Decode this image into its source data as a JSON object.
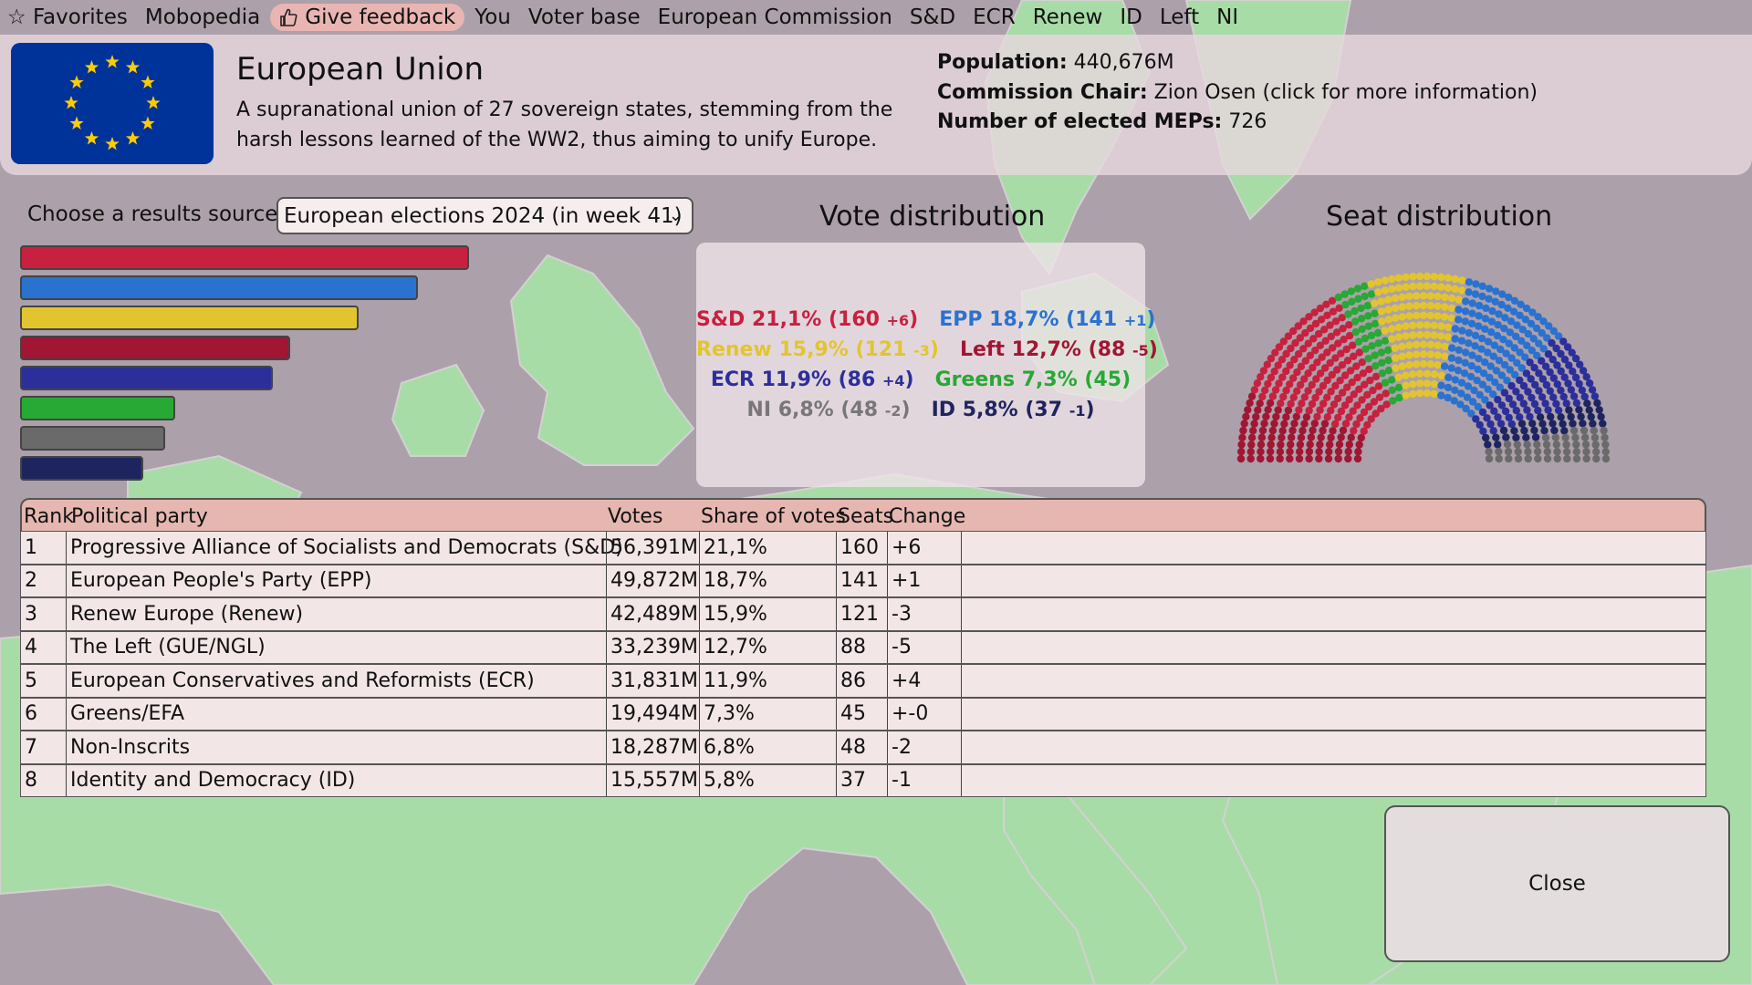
{
  "menu": {
    "favorites": "Favorites",
    "mobopedia": "Mobopedia",
    "feedback": "Give feedback",
    "you": "You",
    "voter_base": "Voter base",
    "commission": "European Commission",
    "sd": "S&D",
    "ecr": "ECR",
    "renew": "Renew",
    "id": "ID",
    "left": "Left",
    "ni": "NI"
  },
  "header": {
    "title": "European Union",
    "description": "A supranational union of 27 sovereign states, stemming from the harsh lessons learned of the WW2, thus aiming to unify Europe.",
    "population_label": "Population:",
    "population_value": "440,676M",
    "chair_label": "Commission Chair:",
    "chair_value": "Zion Osen (click for more information)",
    "meps_label": "Number of elected MEPs:",
    "meps_value": "726"
  },
  "source": {
    "label": "Choose a results source",
    "selected": "European elections 2024 (in week 41)"
  },
  "vote_distribution": {
    "title": "Vote distribution",
    "entries": [
      {
        "party": "S&D",
        "share": "21,1%",
        "seats": "160",
        "change": "+6",
        "color": "#c8203f"
      },
      {
        "party": "EPP",
        "share": "18,7%",
        "seats": "141",
        "change": "+1",
        "color": "#2a72cf"
      },
      {
        "party": "Renew",
        "share": "15,9%",
        "seats": "121",
        "change": "-3",
        "color": "#e2c52e"
      },
      {
        "party": "Left",
        "share": "12,7%",
        "seats": "88",
        "change": "-5",
        "color": "#a01633"
      },
      {
        "party": "ECR",
        "share": "11,9%",
        "seats": "86",
        "change": "+4",
        "color": "#2c2f9a"
      },
      {
        "party": "Greens",
        "share": "7,3%",
        "seats": "45",
        "change": "",
        "color": "#28a834"
      },
      {
        "party": "NI",
        "share": "6,8%",
        "seats": "48",
        "change": "-2",
        "color": "#777777"
      },
      {
        "party": "ID",
        "share": "5,8%",
        "seats": "37",
        "change": "-1",
        "color": "#1e255e"
      }
    ]
  },
  "seat_distribution": {
    "title": "Seat distribution"
  },
  "chart_data": {
    "type": "bar",
    "categories": [
      "S&D",
      "EPP",
      "Renew",
      "Left",
      "ECR",
      "Greens",
      "NI",
      "ID"
    ],
    "values": [
      21.1,
      18.7,
      15.9,
      12.7,
      11.9,
      7.3,
      6.8,
      5.8
    ],
    "colors": [
      "#c8203f",
      "#2a72cf",
      "#e2c52e",
      "#a01633",
      "#2c2f9a",
      "#28a834",
      "#6a6a6a",
      "#1e255e"
    ],
    "seats": [
      160,
      141,
      121,
      88,
      86,
      45,
      48,
      37
    ]
  },
  "table": {
    "headers": [
      "Rank",
      "Political party",
      "Votes",
      "Share of votes",
      "Seats",
      "Change"
    ],
    "rows": [
      [
        "1",
        "Progressive Alliance of Socialists and Democrats (S&D)",
        "56,391M",
        "21,1%",
        "160",
        "+6"
      ],
      [
        "2",
        "European People's Party (EPP)",
        "49,872M",
        "18,7%",
        "141",
        "+1"
      ],
      [
        "3",
        "Renew Europe (Renew)",
        "42,489M",
        "15,9%",
        "121",
        "-3"
      ],
      [
        "4",
        "The Left (GUE/NGL)",
        "33,239M",
        "12,7%",
        "88",
        "-5"
      ],
      [
        "5",
        "European Conservatives and Reformists (ECR)",
        "31,831M",
        "11,9%",
        "86",
        "+4"
      ],
      [
        "6",
        "Greens/EFA",
        "19,494M",
        "7,3%",
        "45",
        "+-0"
      ],
      [
        "7",
        "Non-Inscrits",
        "18,287M",
        "6,8%",
        "48",
        "-2"
      ],
      [
        "8",
        "Identity and Democracy (ID)",
        "15,557M",
        "5,8%",
        "37",
        "-1"
      ]
    ]
  },
  "close_label": "Close"
}
